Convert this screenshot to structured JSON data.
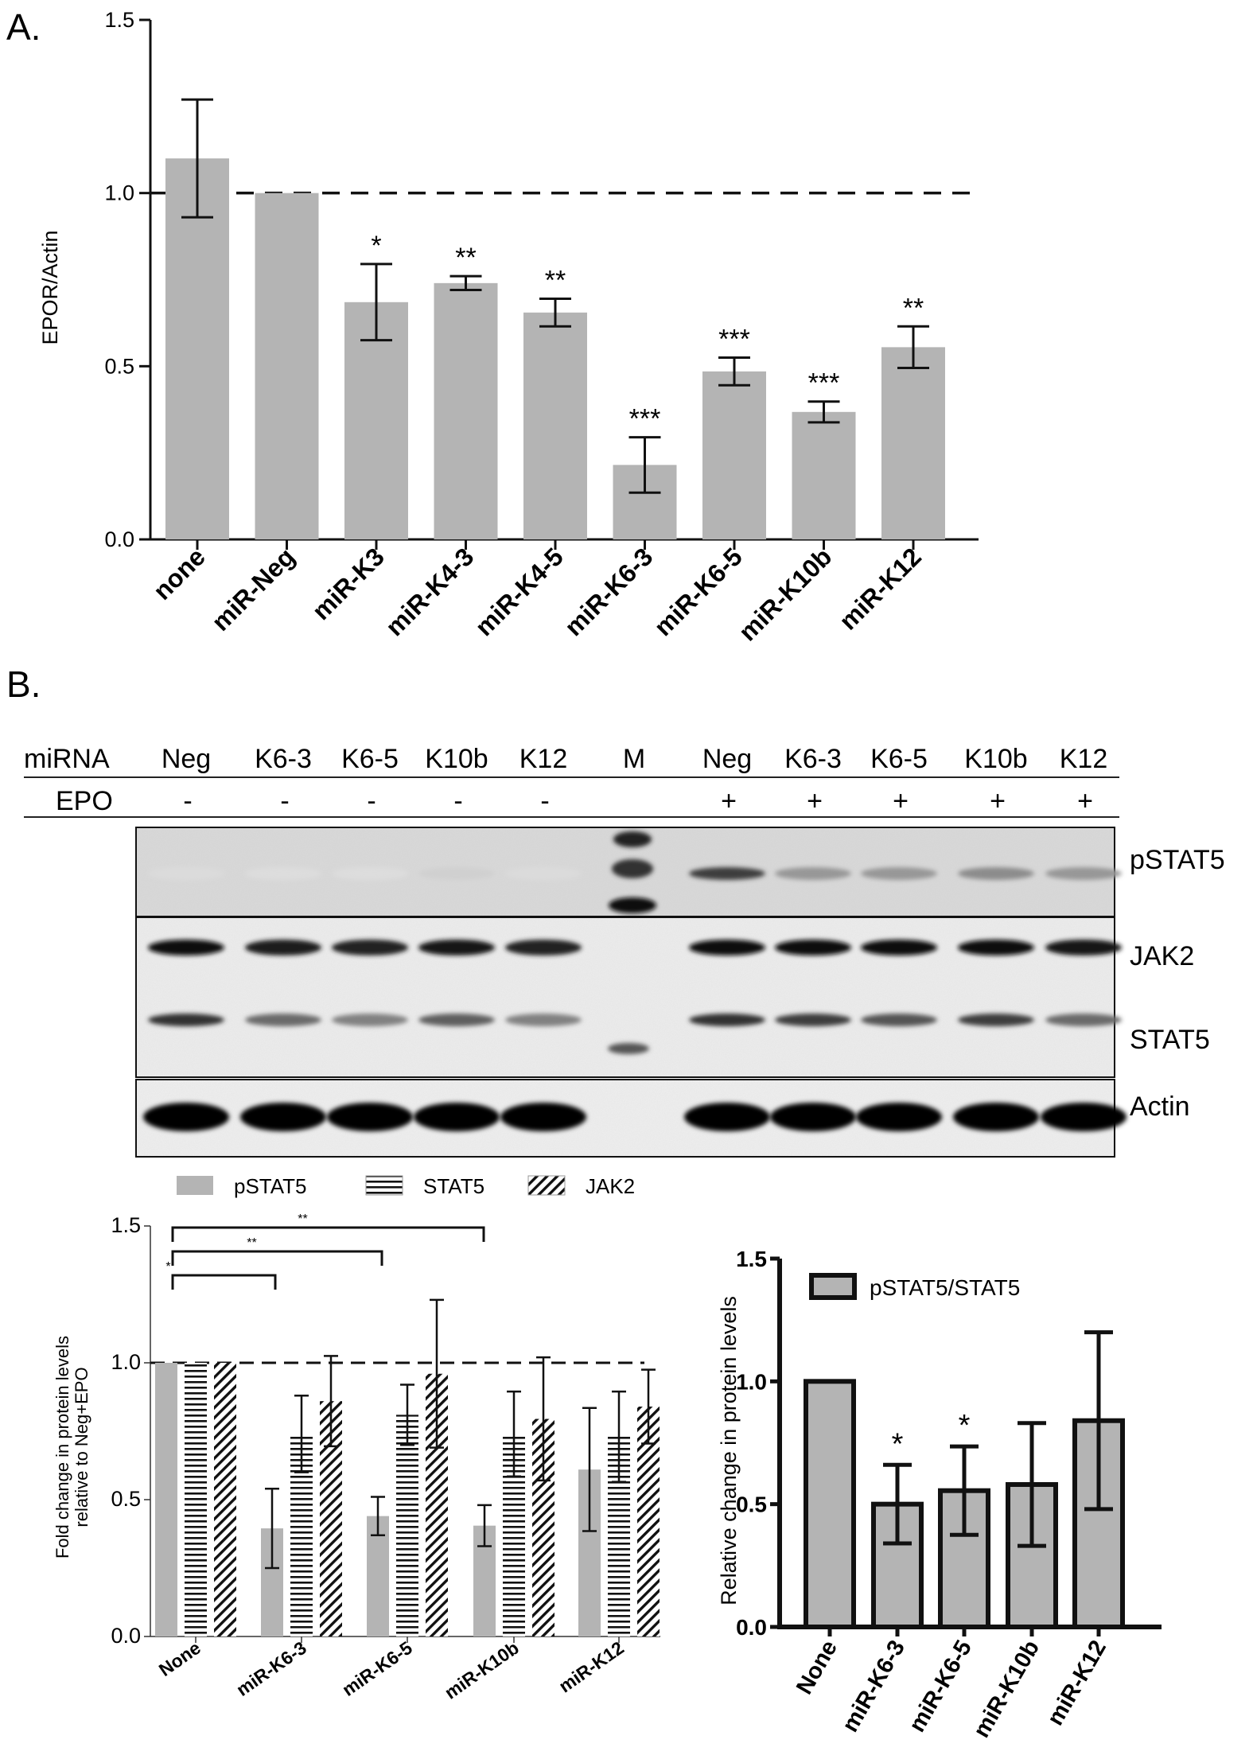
{
  "panel_labels": {
    "a": "A.",
    "b": "B."
  },
  "chart_data": [
    {
      "id": "panel-a",
      "type": "bar",
      "title": "",
      "ylabel": "EPOR/Actin",
      "xlabel": "",
      "ylim": [
        0,
        1.5
      ],
      "yticks": [
        "0.0",
        "0.5",
        "1.0",
        "1.5"
      ],
      "reference_line": 1.0,
      "categories": [
        "none",
        "miR-Neg",
        "miR-K3",
        "miR-K4-3",
        "miR-K4-5",
        "miR-K6-3",
        "miR-K6-5",
        "miR-K10b",
        "miR-K12"
      ],
      "values": [
        1.1,
        1.0,
        0.685,
        0.74,
        0.655,
        0.215,
        0.485,
        0.368,
        0.555
      ],
      "errors": [
        0.17,
        0.0,
        0.11,
        0.02,
        0.04,
        0.08,
        0.04,
        0.03,
        0.06
      ],
      "significance": [
        "",
        "",
        "*",
        "**",
        "**",
        "***",
        "***",
        "***",
        "**"
      ],
      "colors": {
        "bar": "#b4b4b4"
      }
    },
    {
      "id": "panel-b-grouped",
      "type": "bar",
      "title": "",
      "ylabel": "Fold change in  protein levels relative to Neg+EPO",
      "ylabel_lines": [
        "Fold change in  protein levels",
        "relative to Neg+EPO"
      ],
      "xlabel": "",
      "ylim": [
        0,
        1.5
      ],
      "yticks": [
        "0.0",
        "0.5",
        "1.0",
        "1.5"
      ],
      "reference_line": 1.0,
      "categories": [
        "None",
        "miR-K6-3",
        "miR-K6-5",
        "miR-K10b",
        "miR-K12"
      ],
      "series": [
        {
          "name": "pSTAT5",
          "values": [
            1.0,
            0.395,
            0.44,
            0.405,
            0.61
          ],
          "errors": [
            0.0,
            0.145,
            0.07,
            0.075,
            0.225
          ]
        },
        {
          "name": "STAT5",
          "values": [
            1.0,
            0.74,
            0.81,
            0.74,
            0.73
          ],
          "errors": [
            0.0,
            0.14,
            0.11,
            0.155,
            0.165
          ]
        },
        {
          "name": "JAK2",
          "values": [
            1.0,
            0.86,
            0.96,
            0.795,
            0.84
          ],
          "errors": [
            0.0,
            0.165,
            0.27,
            0.225,
            0.135
          ]
        }
      ],
      "legend_position": "top",
      "significance_brackets": [
        {
          "from": "None",
          "to": "miR-K6-3",
          "label": "*"
        },
        {
          "from": "None",
          "to": "miR-K6-5",
          "label": "**"
        },
        {
          "from": "None",
          "to": "miR-K10b",
          "label": "**"
        }
      ]
    },
    {
      "id": "panel-b-ratio",
      "type": "bar",
      "title": "",
      "ylabel": "Relative change in protein levels",
      "xlabel": "",
      "ylim": [
        0,
        1.5
      ],
      "yticks": [
        "0.0",
        "0.5",
        "1.0",
        "1.5"
      ],
      "categories": [
        "None",
        "miR-K6-3",
        "miR-K6-5",
        "miR-K10b",
        "miR-K12"
      ],
      "series": [
        {
          "name": "pSTAT5/STAT5",
          "values": [
            1.0,
            0.5,
            0.555,
            0.58,
            0.84
          ],
          "errors": [
            0.0,
            0.16,
            0.18,
            0.25,
            0.36
          ]
        }
      ],
      "significance": [
        "",
        "*",
        "*",
        "",
        ""
      ],
      "legend_position": "top-left"
    }
  ],
  "blot": {
    "row_labels": {
      "mirna": "miRNA",
      "epo": "EPO"
    },
    "lanes": [
      "Neg",
      "K6-3",
      "K6-5",
      "K10b",
      "K12",
      "M",
      "Neg",
      "K6-3",
      "K6-5",
      "K10b",
      "K12"
    ],
    "epo": [
      "-",
      "-",
      "-",
      "-",
      "-",
      "",
      "+",
      "+",
      "+",
      "+",
      "+"
    ],
    "bands": [
      "pSTAT5",
      "JAK2",
      "STAT5",
      "Actin"
    ],
    "band_intensity": {
      "pSTAT5": [
        0.05,
        0.04,
        0.04,
        0.1,
        0.05,
        0,
        0.75,
        0.35,
        0.35,
        0.4,
        0.35
      ],
      "JAK2": [
        0.95,
        0.9,
        0.88,
        0.92,
        0.88,
        0,
        0.95,
        0.95,
        0.95,
        0.95,
        0.92
      ],
      "STAT5": [
        0.8,
        0.55,
        0.45,
        0.6,
        0.45,
        0,
        0.8,
        0.75,
        0.65,
        0.75,
        0.55
      ],
      "Actin": [
        1,
        1,
        1,
        1,
        1,
        0,
        1,
        1,
        1,
        1,
        1
      ]
    }
  }
}
